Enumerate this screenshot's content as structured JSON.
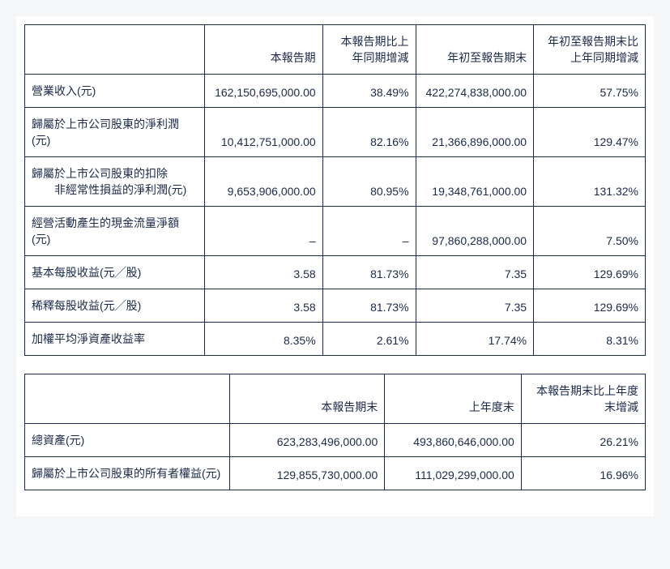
{
  "table1": {
    "headers": [
      "",
      "本報告期",
      "本報告期比上年同期增減",
      "年初至報告期末",
      "年初至報告期末比上年同期增減"
    ],
    "rows": [
      {
        "label": "營業收入(元)",
        "c1": "162,150,695,000.00",
        "c2": "38.49%",
        "c3": "422,274,838,000.00",
        "c4": "57.75%"
      },
      {
        "label": "歸屬於上市公司股東的淨利潤(元)",
        "c1": "10,412,751,000.00",
        "c2": "82.16%",
        "c3": "21,366,896,000.00",
        "c4": "129.47%"
      },
      {
        "label": "歸屬於上市公司股東的扣除",
        "sub": "非經常性損益的淨利潤(元)",
        "c1": "9,653,906,000.00",
        "c2": "80.95%",
        "c3": "19,348,761,000.00",
        "c4": "131.32%"
      },
      {
        "label": "經營活動產生的現金流量淨額(元)",
        "c1": "–",
        "c2": "–",
        "c3": "97,860,288,000.00",
        "c4": "7.50%"
      },
      {
        "label": "基本每股收益(元╱股)",
        "c1": "3.58",
        "c2": "81.73%",
        "c3": "7.35",
        "c4": "129.69%"
      },
      {
        "label": "稀釋每股收益(元╱股)",
        "c1": "3.58",
        "c2": "81.73%",
        "c3": "7.35",
        "c4": "129.69%"
      },
      {
        "label": "加權平均淨資產收益率",
        "c1": "8.35%",
        "c2": "2.61%",
        "c3": "17.74%",
        "c4": "8.31%"
      }
    ]
  },
  "table2": {
    "headers": [
      "",
      "本報告期末",
      "上年度末",
      "本報告期末比上年度末增減"
    ],
    "rows": [
      {
        "label": "總資產(元)",
        "c1": "623,283,496,000.00",
        "c2": "493,860,646,000.00",
        "c3": "26.21%"
      },
      {
        "label": "歸屬於上市公司股東的所有者權益(元)",
        "c1": "129,855,730,000.00",
        "c2": "111,029,299,000.00",
        "c3": "16.96%"
      }
    ]
  }
}
